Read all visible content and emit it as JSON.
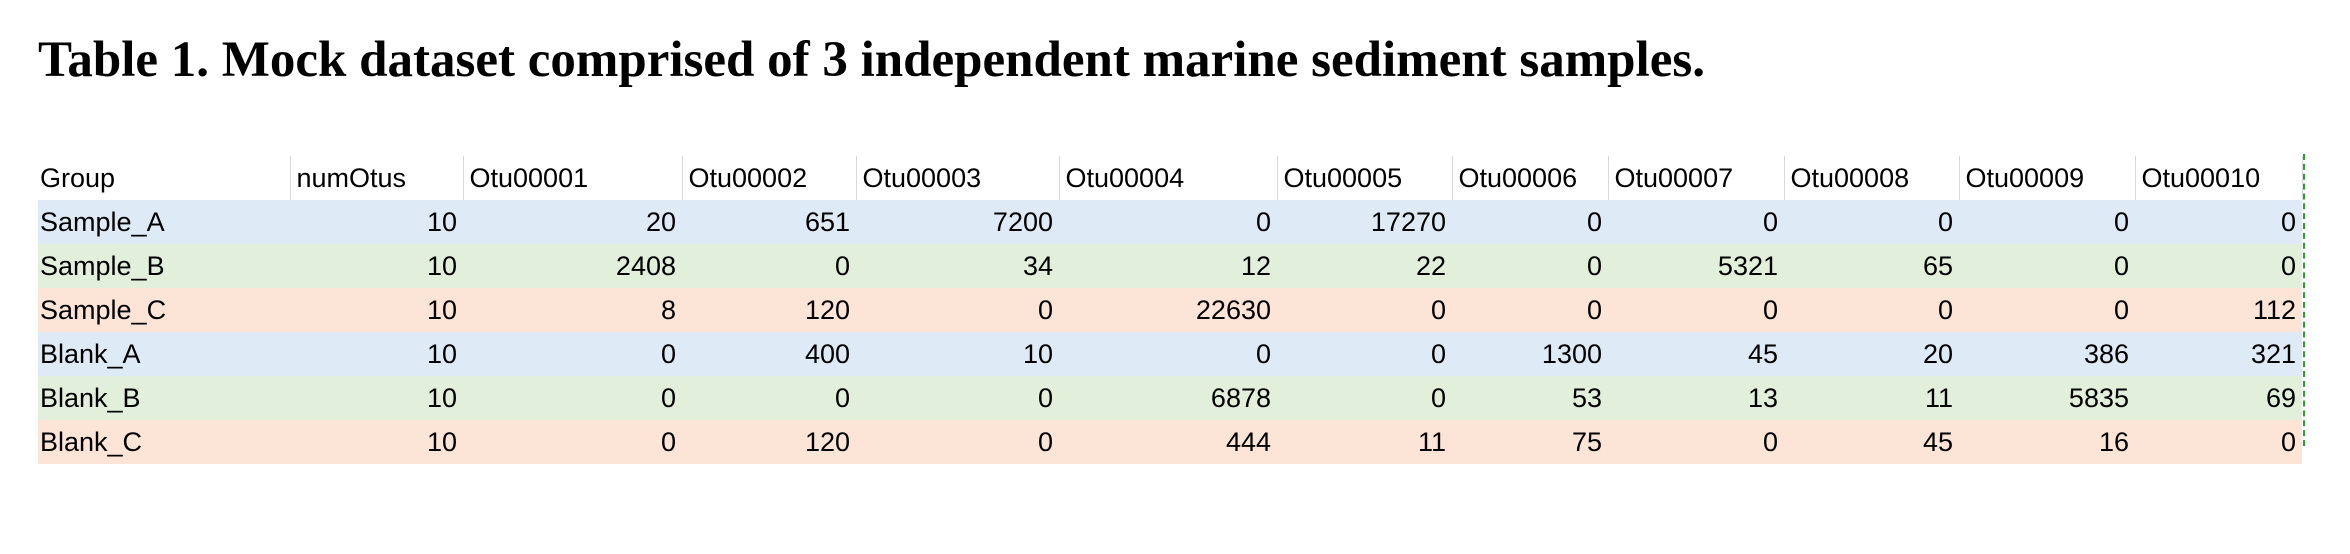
{
  "document": {
    "title": "Table 1. Mock dataset comprised of 3 independent marine sediment samples."
  },
  "table": {
    "columns": [
      "Group",
      "numOtus",
      "Otu00001",
      "Otu00002",
      "Otu00003",
      "Otu00004",
      "Otu00005",
      "Otu00006",
      "Otu00007",
      "Otu00008",
      "Otu00009",
      "Otu00010"
    ],
    "rows": [
      {
        "cells": [
          "Sample_A",
          "10",
          "20",
          "651",
          "7200",
          "0",
          "17270",
          "0",
          "0",
          "0",
          "0",
          "0"
        ]
      },
      {
        "cells": [
          "Sample_B",
          "10",
          "2408",
          "0",
          "34",
          "12",
          "22",
          "0",
          "5321",
          "65",
          "0",
          "0"
        ]
      },
      {
        "cells": [
          "Sample_C",
          "10",
          "8",
          "120",
          "0",
          "22630",
          "0",
          "0",
          "0",
          "0",
          "0",
          "112"
        ]
      },
      {
        "cells": [
          "Blank_A",
          "10",
          "0",
          "400",
          "10",
          "0",
          "0",
          "1300",
          "45",
          "20",
          "386",
          "321"
        ]
      },
      {
        "cells": [
          "Blank_B",
          "10",
          "0",
          "0",
          "0",
          "6878",
          "0",
          "53",
          "13",
          "11",
          "5835",
          "69"
        ]
      },
      {
        "cells": [
          "Blank_C",
          "10",
          "0",
          "120",
          "0",
          "444",
          "11",
          "75",
          "0",
          "45",
          "16",
          "0"
        ]
      }
    ]
  },
  "colors": {
    "row_blue": "#deebf6",
    "row_green": "#e2efda",
    "row_pink": "#fce4d6",
    "page_break_line": "#2ca02c"
  }
}
